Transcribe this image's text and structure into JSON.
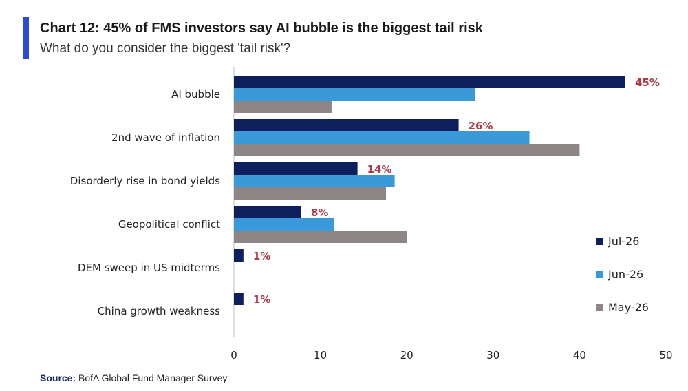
{
  "header": {
    "title": "Chart 12: 45% of FMS investors say AI bubble is the biggest tail risk",
    "subtitle": "What do you consider the biggest 'tail risk'?"
  },
  "source": {
    "label": "Source:",
    "text": "BofA Global Fund Manager Survey"
  },
  "chart_data": {
    "type": "bar",
    "orientation": "horizontal",
    "title": "Chart 12: 45% of FMS investors say AI bubble is the biggest tail risk",
    "subtitle": "What do you consider the biggest 'tail risk'?",
    "categories": [
      "AI bubble",
      "2nd wave of inflation",
      "Disorderly rise in bond yields",
      "Geopolitical conflict",
      "DEM sweep in US midterms",
      "China growth weakness"
    ],
    "series": [
      {
        "name": "Jul-26",
        "color": "#0d1f5c",
        "values": [
          45.3,
          26,
          14.3,
          7.8,
          1.1,
          1.1
        ]
      },
      {
        "name": "Jun-26",
        "color": "#3a9ad9",
        "values": [
          27.9,
          34.2,
          18.6,
          11.6,
          0,
          0
        ]
      },
      {
        "name": "May-26",
        "color": "#8e8686",
        "values": [
          11.3,
          40,
          17.6,
          20,
          0,
          0
        ]
      }
    ],
    "data_labels": [
      "45%",
      "26%",
      "14%",
      "8%",
      "1%",
      "1%"
    ],
    "data_label_color": "#b03a48",
    "xlim": [
      0,
      50
    ],
    "xticks": [
      0,
      10,
      20,
      30,
      40,
      50
    ],
    "grid": false,
    "legend_position": "right"
  }
}
